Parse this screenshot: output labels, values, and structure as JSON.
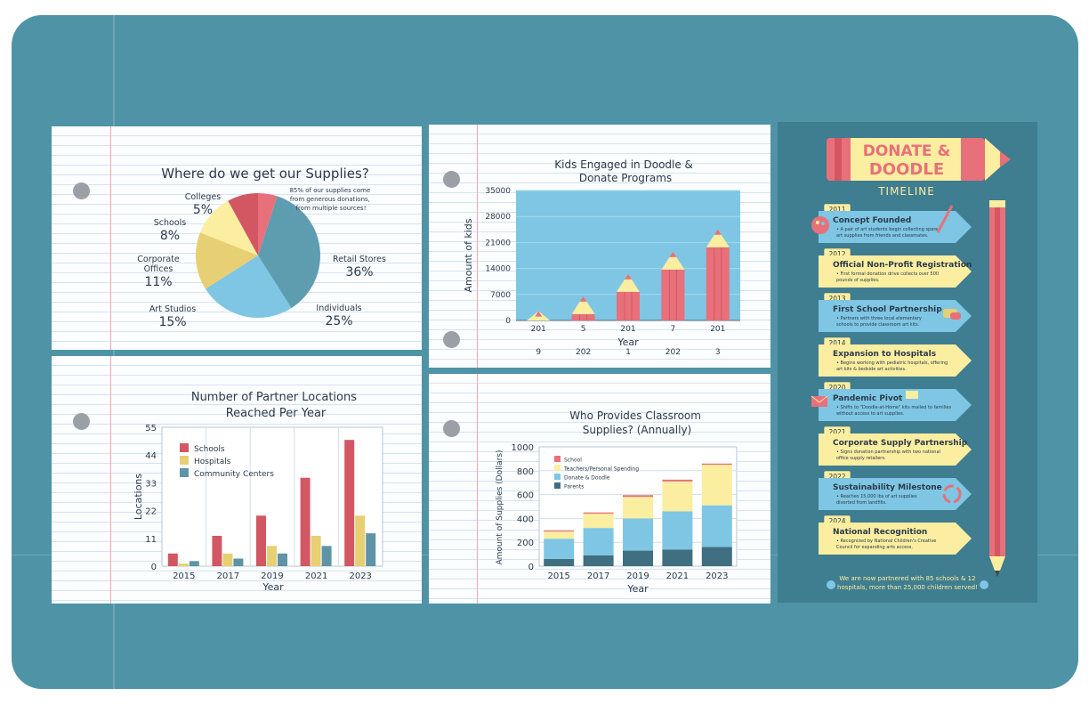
{
  "colors": {
    "pink": "#e8707a",
    "red": "#d35763",
    "yellow": "#fbeea0",
    "gold": "#e7cf73",
    "blue": "#7ec6e3",
    "teal": "#5e94a6",
    "slate": "#3f6f80",
    "board": "#4f93a6",
    "panel": "#3f7d90",
    "text": "#2b3a4a"
  },
  "chart_data": [
    {
      "type": "pie",
      "title": "Where do we get our Supplies?",
      "annotation": "85% of our supplies come from generous donations, from multiple sources!",
      "slices": [
        {
          "name": "Retail Stores",
          "value": 36,
          "label": "36%",
          "color": "#5e9db0"
        },
        {
          "name": "Individuals",
          "value": 25,
          "label": "25%",
          "color": "#7ec6e3"
        },
        {
          "name": "Art Studios",
          "value": 15,
          "label": "15%",
          "color": "#e7cf73"
        },
        {
          "name": "Corporate Offices",
          "value": 11,
          "label": "11%",
          "color": "#fbeea0"
        },
        {
          "name": "Schools",
          "value": 8,
          "label": "8%",
          "color": "#d35763"
        },
        {
          "name": "Colleges",
          "value": 5,
          "label": "5%",
          "color": "#e8707a"
        }
      ]
    },
    {
      "type": "bar",
      "title": "Kids Engaged in Doodle & Donate Programs",
      "xlabel": "Year",
      "ylabel": "Amount of kids",
      "ylim": [
        0,
        35000
      ],
      "yticks": [
        0,
        7000,
        14000,
        21000,
        28000,
        35000
      ],
      "tick_rows": [
        [
          "201",
          "5",
          "201",
          "7",
          "201"
        ],
        [
          "9",
          "202",
          "1",
          "202",
          "3"
        ]
      ],
      "values": [
        2500,
        6500,
        12500,
        18500,
        24500
      ]
    },
    {
      "type": "bar",
      "title": "Number of Partner Locations Reached Per Year",
      "xlabel": "Year",
      "ylabel": "Locations",
      "ylim": [
        0,
        55
      ],
      "yticks": [
        0,
        11,
        22,
        33,
        44,
        55
      ],
      "categories": [
        "2015",
        "2017",
        "2019",
        "2021",
        "2023"
      ],
      "series": [
        {
          "name": "Schools",
          "color": "#d35763",
          "values": [
            5,
            12,
            20,
            35,
            50
          ]
        },
        {
          "name": "Hospitals",
          "color": "#e7cf73",
          "values": [
            1,
            5,
            8,
            12,
            20
          ]
        },
        {
          "name": "Community Centers",
          "color": "#5e94a6",
          "values": [
            2,
            3,
            5,
            8,
            13
          ]
        }
      ]
    },
    {
      "type": "bar",
      "stacked": true,
      "title": "Who Provides Classroom Supplies? (Annually)",
      "xlabel": "Year",
      "ylabel": "Amount of Supplies (Dollars)",
      "ylim": [
        0,
        1000
      ],
      "yticks": [
        0,
        200,
        400,
        600,
        800,
        1000
      ],
      "categories": [
        "2015",
        "2017",
        "2019",
        "2021",
        "2023"
      ],
      "series": [
        {
          "name": "Parents",
          "color": "#3f6f80",
          "values": [
            60,
            90,
            130,
            140,
            160
          ]
        },
        {
          "name": "Donate & Doodle",
          "color": "#7ec6e3",
          "values": [
            170,
            230,
            270,
            320,
            350
          ]
        },
        {
          "name": "Teachers/Personal Spending",
          "color": "#fbeea0",
          "values": [
            60,
            120,
            180,
            250,
            340
          ]
        },
        {
          "name": "School",
          "color": "#e8707a",
          "values": [
            10,
            10,
            15,
            15,
            10
          ]
        }
      ]
    }
  ],
  "timeline": {
    "title_line1": "DONATE &",
    "title_line2": "DOODLE",
    "subtitle": "TIMELINE",
    "entries": [
      {
        "year": "2011",
        "title": "Concept Founded",
        "desc": [
          "• A pair of art students begin collecting spare",
          "art supplies from friends and classmates."
        ],
        "color": "#7ec6e3",
        "icon": "palette-icon"
      },
      {
        "year": "2012",
        "title": "Official Non-Profit Registration",
        "desc": [
          "• First formal donation drive collects over 500",
          "pounds of supplies."
        ],
        "color": "#fbeea0",
        "icon": ""
      },
      {
        "year": "2013",
        "title": "First School Partnership",
        "desc": [
          "• Partners with three local elementary",
          "schools to provide classroom art kits."
        ],
        "color": "#7ec6e3",
        "icon": "handshake-icon"
      },
      {
        "year": "2014",
        "title": "Expansion to Hospitals",
        "desc": [
          "• Begins working with pediatric hospitals, offering",
          "art kits & bedside art activities."
        ],
        "color": "#fbeea0",
        "icon": ""
      },
      {
        "year": "2020",
        "title": "Pandemic Pivot",
        "desc": [
          "• Shifts to \"Doodle-at-Home\" kits mailed to families",
          "without access to art supplies."
        ],
        "color": "#7ec6e3",
        "icon": "mail-icon"
      },
      {
        "year": "2021",
        "title": "Corporate Supply Partnership",
        "desc": [
          "• Signs donation partnership with two national",
          "office supply retailers."
        ],
        "color": "#fbeea0",
        "icon": ""
      },
      {
        "year": "2022",
        "title": "Sustainability Milestone",
        "desc": [
          "• Reaches 15,000 lbs of art supplies",
          "diverted from landfills."
        ],
        "color": "#7ec6e3",
        "icon": "recycle-icon"
      },
      {
        "year": "2024",
        "title": "National Recognition",
        "desc": [
          "• Recognized by National Children's Creative",
          "Council for expanding arts access."
        ],
        "color": "#fbeea0",
        "icon": ""
      }
    ],
    "footer_line1": "We are now partnered with 85 schools & 12",
    "footer_line2": "hospitals, more than 25,000 children served!"
  }
}
